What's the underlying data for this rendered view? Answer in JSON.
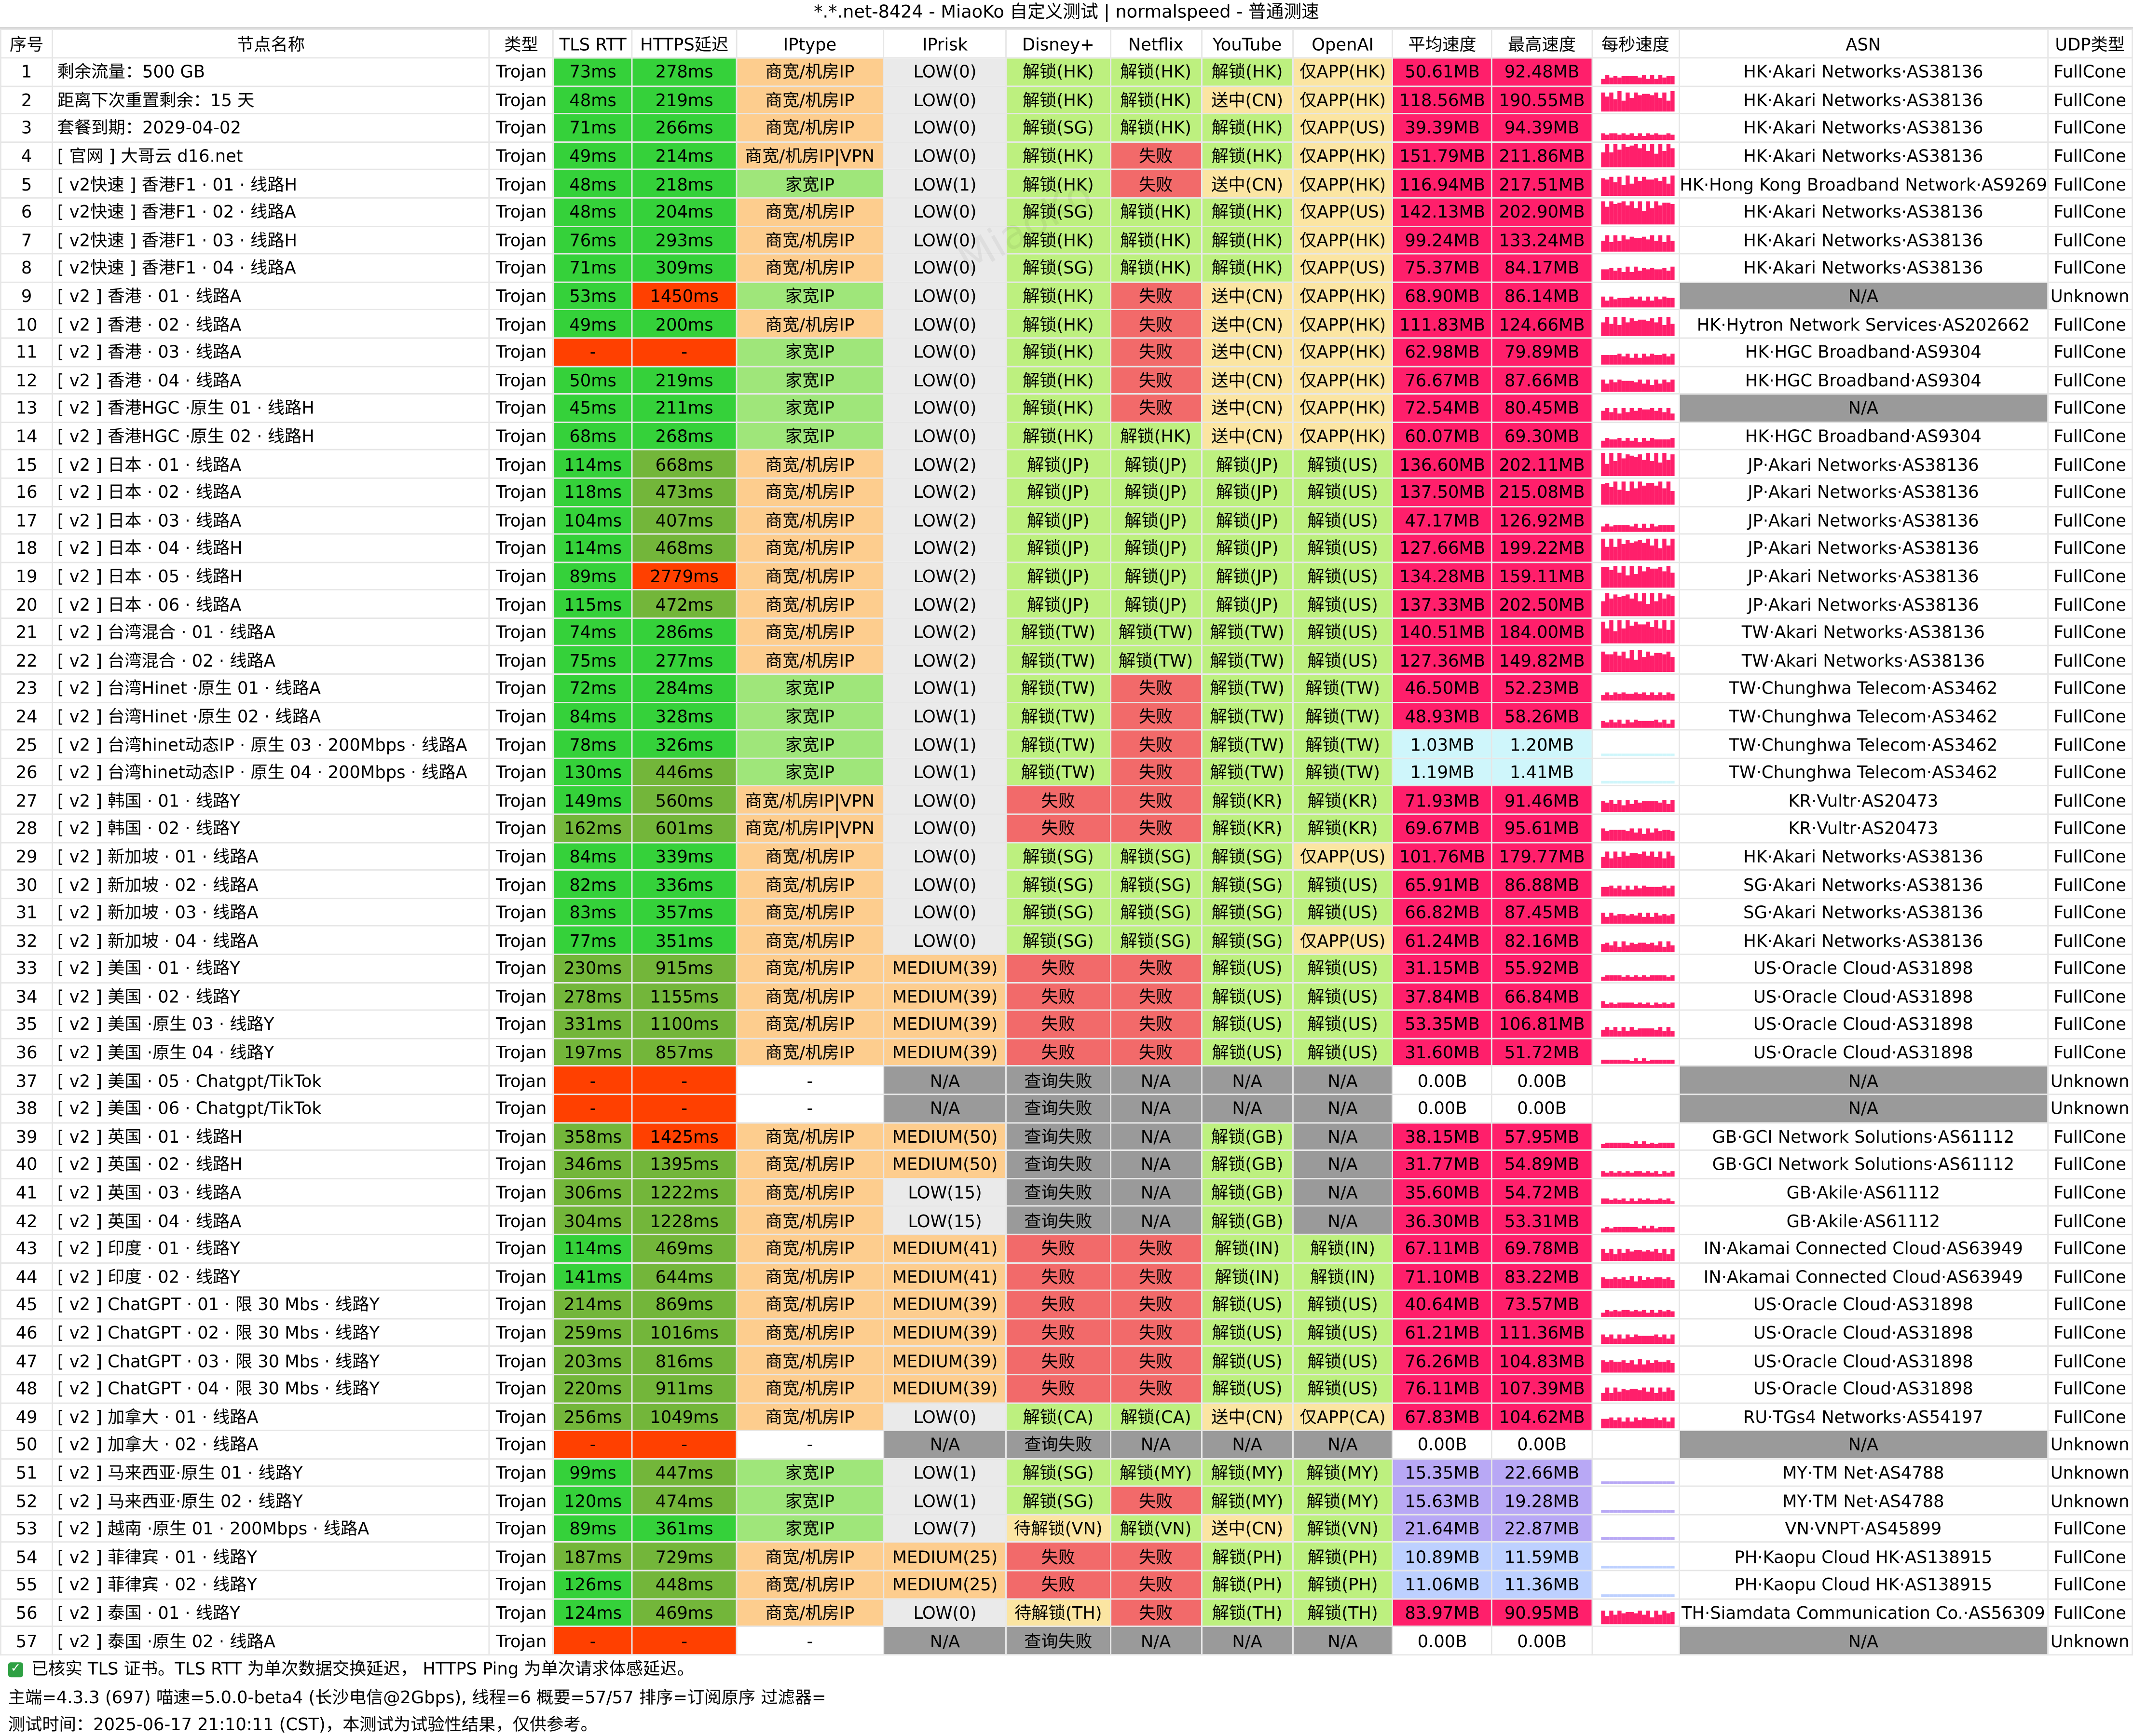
{
  "title": "*.*.net-8424 - MiaoKo 自定义测试 | normalspeed - 普通测速",
  "headers": [
    "序号",
    "节点名称",
    "类型",
    "TLS RTT",
    "HTTPS延迟",
    "IPtype",
    "IPrisk",
    "Disney+",
    "Netflix",
    "YouTube",
    "OpenAI",
    "平均速度",
    "最高速度",
    "每秒速度",
    "ASN",
    "UDP类型"
  ],
  "rows": [
    [
      "1",
      "剩余流量：500 GB",
      "Trojan",
      "73ms",
      "278ms",
      "商宽/机房IP",
      "LOW(0)",
      "解锁(HK)",
      "解锁(HK)",
      "解锁(HK)",
      "仅APP(HK)",
      "50.61MB",
      "92.48MB",
      "HK·Akari Networks·AS38136",
      "FullCone"
    ],
    [
      "2",
      "距离下次重置剩余：15 天",
      "Trojan",
      "48ms",
      "219ms",
      "商宽/机房IP",
      "LOW(0)",
      "解锁(HK)",
      "解锁(HK)",
      "送中(CN)",
      "仅APP(HK)",
      "118.56MB",
      "190.55MB",
      "HK·Akari Networks·AS38136",
      "FullCone"
    ],
    [
      "3",
      "套餐到期：2029-04-02",
      "Trojan",
      "71ms",
      "266ms",
      "商宽/机房IP",
      "LOW(0)",
      "解锁(SG)",
      "解锁(HK)",
      "解锁(HK)",
      "仅APP(US)",
      "39.39MB",
      "94.39MB",
      "HK·Akari Networks·AS38136",
      "FullCone"
    ],
    [
      "4",
      "[ 官网 ] 大哥云 d16.net",
      "Trojan",
      "49ms",
      "214ms",
      "商宽/机房IP|VPN",
      "LOW(0)",
      "解锁(HK)",
      "失败",
      "解锁(HK)",
      "仅APP(HK)",
      "151.79MB",
      "211.86MB",
      "HK·Akari Networks·AS38136",
      "FullCone"
    ],
    [
      "5",
      "[ v2快速 ] 香港F1 · 01 · 线路H",
      "Trojan",
      "48ms",
      "218ms",
      "家宽IP",
      "LOW(1)",
      "解锁(HK)",
      "失败",
      "送中(CN)",
      "仅APP(HK)",
      "116.94MB",
      "217.51MB",
      "HK·Hong Kong Broadband Network·AS9269",
      "FullCone"
    ],
    [
      "6",
      "[ v2快速 ] 香港F1 · 02 · 线路A",
      "Trojan",
      "48ms",
      "204ms",
      "商宽/机房IP",
      "LOW(0)",
      "解锁(SG)",
      "解锁(HK)",
      "解锁(HK)",
      "仅APP(US)",
      "142.13MB",
      "202.90MB",
      "HK·Akari Networks·AS38136",
      "FullCone"
    ],
    [
      "7",
      "[ v2快速 ] 香港F1 · 03 · 线路H",
      "Trojan",
      "76ms",
      "293ms",
      "商宽/机房IP",
      "LOW(0)",
      "解锁(HK)",
      "解锁(HK)",
      "解锁(HK)",
      "仅APP(HK)",
      "99.24MB",
      "133.24MB",
      "HK·Akari Networks·AS38136",
      "FullCone"
    ],
    [
      "8",
      "[ v2快速 ] 香港F1 · 04 · 线路A",
      "Trojan",
      "71ms",
      "309ms",
      "商宽/机房IP",
      "LOW(0)",
      "解锁(SG)",
      "解锁(HK)",
      "解锁(HK)",
      "仅APP(US)",
      "75.37MB",
      "84.17MB",
      "HK·Akari Networks·AS38136",
      "FullCone"
    ],
    [
      "9",
      "[ v2 ] 香港 · 01 · 线路A",
      "Trojan",
      "53ms",
      "1450ms",
      "家宽IP",
      "LOW(0)",
      "解锁(HK)",
      "失败",
      "送中(CN)",
      "仅APP(HK)",
      "68.90MB",
      "86.14MB",
      "N/A",
      "Unknown"
    ],
    [
      "10",
      "[ v2 ] 香港 · 02 · 线路A",
      "Trojan",
      "49ms",
      "200ms",
      "商宽/机房IP",
      "LOW(0)",
      "解锁(HK)",
      "失败",
      "送中(CN)",
      "仅APP(HK)",
      "111.83MB",
      "124.66MB",
      "HK·Hytron Network Services·AS202662",
      "FullCone"
    ],
    [
      "11",
      "[ v2 ] 香港 · 03 · 线路A",
      "Trojan",
      "-",
      "-",
      "家宽IP",
      "LOW(0)",
      "解锁(HK)",
      "失败",
      "送中(CN)",
      "仅APP(HK)",
      "62.98MB",
      "79.89MB",
      "HK·HGC Broadband·AS9304",
      "FullCone"
    ],
    [
      "12",
      "[ v2 ] 香港 · 04 · 线路A",
      "Trojan",
      "50ms",
      "219ms",
      "家宽IP",
      "LOW(0)",
      "解锁(HK)",
      "失败",
      "送中(CN)",
      "仅APP(HK)",
      "76.67MB",
      "87.66MB",
      "HK·HGC Broadband·AS9304",
      "FullCone"
    ],
    [
      "13",
      "[ v2 ] 香港HGC ·原生 01 · 线路H",
      "Trojan",
      "45ms",
      "211ms",
      "家宽IP",
      "LOW(0)",
      "解锁(HK)",
      "失败",
      "送中(CN)",
      "仅APP(HK)",
      "72.54MB",
      "80.45MB",
      "N/A",
      "FullCone"
    ],
    [
      "14",
      "[ v2 ] 香港HGC ·原生 02 · 线路H",
      "Trojan",
      "68ms",
      "268ms",
      "家宽IP",
      "LOW(0)",
      "解锁(HK)",
      "解锁(HK)",
      "送中(CN)",
      "仅APP(HK)",
      "60.07MB",
      "69.30MB",
      "HK·HGC Broadband·AS9304",
      "FullCone"
    ],
    [
      "15",
      "[ v2 ] 日本 · 01 · 线路A",
      "Trojan",
      "114ms",
      "668ms",
      "商宽/机房IP",
      "LOW(2)",
      "解锁(JP)",
      "解锁(JP)",
      "解锁(JP)",
      "解锁(US)",
      "136.60MB",
      "202.11MB",
      "JP·Akari Networks·AS38136",
      "FullCone"
    ],
    [
      "16",
      "[ v2 ] 日本 · 02 · 线路A",
      "Trojan",
      "118ms",
      "473ms",
      "商宽/机房IP",
      "LOW(2)",
      "解锁(JP)",
      "解锁(JP)",
      "解锁(JP)",
      "解锁(US)",
      "137.50MB",
      "215.08MB",
      "JP·Akari Networks·AS38136",
      "FullCone"
    ],
    [
      "17",
      "[ v2 ] 日本 · 03 · 线路A",
      "Trojan",
      "104ms",
      "407ms",
      "商宽/机房IP",
      "LOW(2)",
      "解锁(JP)",
      "解锁(JP)",
      "解锁(JP)",
      "解锁(US)",
      "47.17MB",
      "126.92MB",
      "JP·Akari Networks·AS38136",
      "FullCone"
    ],
    [
      "18",
      "[ v2 ] 日本 · 04 · 线路H",
      "Trojan",
      "114ms",
      "468ms",
      "商宽/机房IP",
      "LOW(2)",
      "解锁(JP)",
      "解锁(JP)",
      "解锁(JP)",
      "解锁(US)",
      "127.66MB",
      "199.22MB",
      "JP·Akari Networks·AS38136",
      "FullCone"
    ],
    [
      "19",
      "[ v2 ] 日本 · 05 · 线路H",
      "Trojan",
      "89ms",
      "2779ms",
      "商宽/机房IP",
      "LOW(2)",
      "解锁(JP)",
      "解锁(JP)",
      "解锁(JP)",
      "解锁(US)",
      "134.28MB",
      "159.11MB",
      "JP·Akari Networks·AS38136",
      "FullCone"
    ],
    [
      "20",
      "[ v2 ] 日本 · 06 · 线路A",
      "Trojan",
      "115ms",
      "472ms",
      "商宽/机房IP",
      "LOW(2)",
      "解锁(JP)",
      "解锁(JP)",
      "解锁(JP)",
      "解锁(US)",
      "137.33MB",
      "202.50MB",
      "JP·Akari Networks·AS38136",
      "FullCone"
    ],
    [
      "21",
      "[ v2 ] 台湾混合 · 01 · 线路A",
      "Trojan",
      "74ms",
      "286ms",
      "商宽/机房IP",
      "LOW(2)",
      "解锁(TW)",
      "解锁(TW)",
      "解锁(TW)",
      "解锁(US)",
      "140.51MB",
      "184.00MB",
      "TW·Akari Networks·AS38136",
      "FullCone"
    ],
    [
      "22",
      "[ v2 ] 台湾混合 · 02 · 线路A",
      "Trojan",
      "75ms",
      "277ms",
      "商宽/机房IP",
      "LOW(2)",
      "解锁(TW)",
      "解锁(TW)",
      "解锁(TW)",
      "解锁(US)",
      "127.36MB",
      "149.82MB",
      "TW·Akari Networks·AS38136",
      "FullCone"
    ],
    [
      "23",
      "[ v2 ] 台湾Hinet ·原生 01 · 线路A",
      "Trojan",
      "72ms",
      "284ms",
      "家宽IP",
      "LOW(1)",
      "解锁(TW)",
      "失败",
      "解锁(TW)",
      "解锁(TW)",
      "46.50MB",
      "52.23MB",
      "TW·Chunghwa Telecom·AS3462",
      "FullCone"
    ],
    [
      "24",
      "[ v2 ] 台湾Hinet ·原生 02 · 线路A",
      "Trojan",
      "84ms",
      "328ms",
      "家宽IP",
      "LOW(1)",
      "解锁(TW)",
      "失败",
      "解锁(TW)",
      "解锁(TW)",
      "48.93MB",
      "58.26MB",
      "TW·Chunghwa Telecom·AS3462",
      "FullCone"
    ],
    [
      "25",
      "[ v2 ] 台湾hinet动态IP · 原生 03 · 200Mbps · 线路A",
      "Trojan",
      "78ms",
      "326ms",
      "家宽IP",
      "LOW(1)",
      "解锁(TW)",
      "失败",
      "解锁(TW)",
      "解锁(TW)",
      "1.03MB",
      "1.20MB",
      "TW·Chunghwa Telecom·AS3462",
      "FullCone"
    ],
    [
      "26",
      "[ v2 ] 台湾hinet动态IP · 原生 04 · 200Mbps · 线路A",
      "Trojan",
      "130ms",
      "446ms",
      "家宽IP",
      "LOW(1)",
      "解锁(TW)",
      "失败",
      "解锁(TW)",
      "解锁(TW)",
      "1.19MB",
      "1.41MB",
      "TW·Chunghwa Telecom·AS3462",
      "FullCone"
    ],
    [
      "27",
      "[ v2 ] 韩国 · 01 · 线路Y",
      "Trojan",
      "149ms",
      "560ms",
      "商宽/机房IP|VPN",
      "LOW(0)",
      "失败",
      "失败",
      "解锁(KR)",
      "解锁(KR)",
      "71.93MB",
      "91.46MB",
      "KR·Vultr·AS20473",
      "FullCone"
    ],
    [
      "28",
      "[ v2 ] 韩国 · 02 · 线路Y",
      "Trojan",
      "162ms",
      "601ms",
      "商宽/机房IP|VPN",
      "LOW(0)",
      "失败",
      "失败",
      "解锁(KR)",
      "解锁(KR)",
      "69.67MB",
      "95.61MB",
      "KR·Vultr·AS20473",
      "FullCone"
    ],
    [
      "29",
      "[ v2 ] 新加坡 · 01 · 线路A",
      "Trojan",
      "84ms",
      "339ms",
      "商宽/机房IP",
      "LOW(0)",
      "解锁(SG)",
      "解锁(SG)",
      "解锁(SG)",
      "仅APP(US)",
      "101.76MB",
      "179.77MB",
      "HK·Akari Networks·AS38136",
      "FullCone"
    ],
    [
      "30",
      "[ v2 ] 新加坡 · 02 · 线路A",
      "Trojan",
      "82ms",
      "336ms",
      "商宽/机房IP",
      "LOW(0)",
      "解锁(SG)",
      "解锁(SG)",
      "解锁(SG)",
      "解锁(US)",
      "65.91MB",
      "86.88MB",
      "SG·Akari Networks·AS38136",
      "FullCone"
    ],
    [
      "31",
      "[ v2 ] 新加坡 · 03 · 线路A",
      "Trojan",
      "83ms",
      "357ms",
      "商宽/机房IP",
      "LOW(0)",
      "解锁(SG)",
      "解锁(SG)",
      "解锁(SG)",
      "解锁(US)",
      "66.82MB",
      "87.45MB",
      "SG·Akari Networks·AS38136",
      "FullCone"
    ],
    [
      "32",
      "[ v2 ] 新加坡 · 04 · 线路A",
      "Trojan",
      "77ms",
      "351ms",
      "商宽/机房IP",
      "LOW(0)",
      "解锁(SG)",
      "解锁(SG)",
      "解锁(SG)",
      "仅APP(US)",
      "61.24MB",
      "82.16MB",
      "HK·Akari Networks·AS38136",
      "FullCone"
    ],
    [
      "33",
      "[ v2 ] 美国 · 01 · 线路Y",
      "Trojan",
      "230ms",
      "915ms",
      "商宽/机房IP",
      "MEDIUM(39)",
      "失败",
      "失败",
      "解锁(US)",
      "解锁(US)",
      "31.15MB",
      "55.92MB",
      "US·Oracle Cloud·AS31898",
      "FullCone"
    ],
    [
      "34",
      "[ v2 ] 美国 · 02 · 线路Y",
      "Trojan",
      "278ms",
      "1155ms",
      "商宽/机房IP",
      "MEDIUM(39)",
      "失败",
      "失败",
      "解锁(US)",
      "解锁(US)",
      "37.84MB",
      "66.84MB",
      "US·Oracle Cloud·AS31898",
      "FullCone"
    ],
    [
      "35",
      "[ v2 ] 美国 ·原生 03 · 线路Y",
      "Trojan",
      "331ms",
      "1100ms",
      "商宽/机房IP",
      "MEDIUM(39)",
      "失败",
      "失败",
      "解锁(US)",
      "解锁(US)",
      "53.35MB",
      "106.81MB",
      "US·Oracle Cloud·AS31898",
      "FullCone"
    ],
    [
      "36",
      "[ v2 ] 美国 ·原生 04 · 线路Y",
      "Trojan",
      "197ms",
      "857ms",
      "商宽/机房IP",
      "MEDIUM(39)",
      "失败",
      "失败",
      "解锁(US)",
      "解锁(US)",
      "31.60MB",
      "51.72MB",
      "US·Oracle Cloud·AS31898",
      "FullCone"
    ],
    [
      "37",
      "[ v2 ] 美国 · 05 · Chatgpt/TikTok",
      "Trojan",
      "-",
      "-",
      "-",
      "N/A",
      "查询失败",
      "N/A",
      "N/A",
      "N/A",
      "0.00B",
      "0.00B",
      "N/A",
      "Unknown"
    ],
    [
      "38",
      "[ v2 ] 美国 · 06 · Chatgpt/TikTok",
      "Trojan",
      "-",
      "-",
      "-",
      "N/A",
      "查询失败",
      "N/A",
      "N/A",
      "N/A",
      "0.00B",
      "0.00B",
      "N/A",
      "Unknown"
    ],
    [
      "39",
      "[ v2 ] 英国 · 01 · 线路H",
      "Trojan",
      "358ms",
      "1425ms",
      "商宽/机房IP",
      "MEDIUM(50)",
      "查询失败",
      "N/A",
      "解锁(GB)",
      "N/A",
      "38.15MB",
      "57.95MB",
      "GB·GCI Network Solutions·AS61112",
      "FullCone"
    ],
    [
      "40",
      "[ v2 ] 英国 · 02 · 线路H",
      "Trojan",
      "346ms",
      "1395ms",
      "商宽/机房IP",
      "MEDIUM(50)",
      "查询失败",
      "N/A",
      "解锁(GB)",
      "N/A",
      "31.77MB",
      "54.89MB",
      "GB·GCI Network Solutions·AS61112",
      "FullCone"
    ],
    [
      "41",
      "[ v2 ] 英国 · 03 · 线路A",
      "Trojan",
      "306ms",
      "1222ms",
      "商宽/机房IP",
      "LOW(15)",
      "查询失败",
      "N/A",
      "解锁(GB)",
      "N/A",
      "35.60MB",
      "54.72MB",
      "GB·Akile·AS61112",
      "FullCone"
    ],
    [
      "42",
      "[ v2 ] 英国 · 04 · 线路A",
      "Trojan",
      "304ms",
      "1228ms",
      "商宽/机房IP",
      "LOW(15)",
      "查询失败",
      "N/A",
      "解锁(GB)",
      "N/A",
      "36.30MB",
      "53.31MB",
      "GB·Akile·AS61112",
      "FullCone"
    ],
    [
      "43",
      "[ v2 ] 印度 · 01 · 线路Y",
      "Trojan",
      "114ms",
      "469ms",
      "商宽/机房IP",
      "MEDIUM(41)",
      "失败",
      "失败",
      "解锁(IN)",
      "解锁(IN)",
      "67.11MB",
      "69.78MB",
      "IN·Akamai Connected Cloud·AS63949",
      "FullCone"
    ],
    [
      "44",
      "[ v2 ] 印度 · 02 · 线路Y",
      "Trojan",
      "141ms",
      "644ms",
      "商宽/机房IP",
      "MEDIUM(41)",
      "失败",
      "失败",
      "解锁(IN)",
      "解锁(IN)",
      "71.10MB",
      "83.22MB",
      "IN·Akamai Connected Cloud·AS63949",
      "FullCone"
    ],
    [
      "45",
      "[ v2 ] ChatGPT · 01 · 限 30 Mbs · 线路Y",
      "Trojan",
      "214ms",
      "869ms",
      "商宽/机房IP",
      "MEDIUM(39)",
      "失败",
      "失败",
      "解锁(US)",
      "解锁(US)",
      "40.64MB",
      "73.57MB",
      "US·Oracle Cloud·AS31898",
      "FullCone"
    ],
    [
      "46",
      "[ v2 ] ChatGPT · 02 · 限 30 Mbs · 线路Y",
      "Trojan",
      "259ms",
      "1016ms",
      "商宽/机房IP",
      "MEDIUM(39)",
      "失败",
      "失败",
      "解锁(US)",
      "解锁(US)",
      "61.21MB",
      "111.36MB",
      "US·Oracle Cloud·AS31898",
      "FullCone"
    ],
    [
      "47",
      "[ v2 ] ChatGPT · 03 · 限 30 Mbs · 线路Y",
      "Trojan",
      "203ms",
      "816ms",
      "商宽/机房IP",
      "MEDIUM(39)",
      "失败",
      "失败",
      "解锁(US)",
      "解锁(US)",
      "76.26MB",
      "104.83MB",
      "US·Oracle Cloud·AS31898",
      "FullCone"
    ],
    [
      "48",
      "[ v2 ] ChatGPT · 04 · 限 30 Mbs · 线路Y",
      "Trojan",
      "220ms",
      "911ms",
      "商宽/机房IP",
      "MEDIUM(39)",
      "失败",
      "失败",
      "解锁(US)",
      "解锁(US)",
      "76.11MB",
      "107.39MB",
      "US·Oracle Cloud·AS31898",
      "FullCone"
    ],
    [
      "49",
      "[ v2 ] 加拿大 · 01 · 线路A",
      "Trojan",
      "256ms",
      "1049ms",
      "商宽/机房IP",
      "LOW(0)",
      "解锁(CA)",
      "解锁(CA)",
      "送中(CN)",
      "仅APP(CA)",
      "67.83MB",
      "104.62MB",
      "RU·TGs4 Networks·AS54197",
      "FullCone"
    ],
    [
      "50",
      "[ v2 ] 加拿大 · 02 · 线路A",
      "Trojan",
      "-",
      "-",
      "-",
      "N/A",
      "查询失败",
      "N/A",
      "N/A",
      "N/A",
      "0.00B",
      "0.00B",
      "N/A",
      "Unknown"
    ],
    [
      "51",
      "[ v2 ] 马来西亚·原生 01 · 线路Y",
      "Trojan",
      "99ms",
      "447ms",
      "家宽IP",
      "LOW(1)",
      "解锁(SG)",
      "解锁(MY)",
      "解锁(MY)",
      "解锁(MY)",
      "15.35MB",
      "22.66MB",
      "MY·TM Net·AS4788",
      "Unknown"
    ],
    [
      "52",
      "[ v2 ] 马来西亚·原生 02 · 线路Y",
      "Trojan",
      "120ms",
      "474ms",
      "家宽IP",
      "LOW(1)",
      "解锁(SG)",
      "失败",
      "解锁(MY)",
      "解锁(MY)",
      "15.63MB",
      "19.28MB",
      "MY·TM Net·AS4788",
      "Unknown"
    ],
    [
      "53",
      "[ v2 ] 越南 ·原生 01 · 200Mbps · 线路A",
      "Trojan",
      "89ms",
      "361ms",
      "家宽IP",
      "LOW(7)",
      "待解锁(VN)",
      "解锁(VN)",
      "送中(CN)",
      "解锁(VN)",
      "21.64MB",
      "22.87MB",
      "VN·VNPT·AS45899",
      "FullCone"
    ],
    [
      "54",
      "[ v2 ] 菲律宾 · 01 · 线路Y",
      "Trojan",
      "187ms",
      "729ms",
      "商宽/机房IP",
      "MEDIUM(25)",
      "失败",
      "失败",
      "解锁(PH)",
      "解锁(PH)",
      "10.89MB",
      "11.59MB",
      "PH·Kaopu Cloud HK·AS138915",
      "FullCone"
    ],
    [
      "55",
      "[ v2 ] 菲律宾 · 02 · 线路Y",
      "Trojan",
      "126ms",
      "448ms",
      "商宽/机房IP",
      "MEDIUM(25)",
      "失败",
      "失败",
      "解锁(PH)",
      "解锁(PH)",
      "11.06MB",
      "11.36MB",
      "PH·Kaopu Cloud HK·AS138915",
      "FullCone"
    ],
    [
      "56",
      "[ v2 ] 泰国 · 01 · 线路Y",
      "Trojan",
      "124ms",
      "469ms",
      "商宽/机房IP",
      "LOW(0)",
      "待解锁(TH)",
      "失败",
      "解锁(TH)",
      "解锁(TH)",
      "83.97MB",
      "90.95MB",
      "TH·Siamdata Communication Co.·AS56309",
      "FullCone"
    ],
    [
      "57",
      "[ v2 ] 泰国 ·原生 02 · 线路A",
      "Trojan",
      "-",
      "-",
      "-",
      "N/A",
      "查询失败",
      "N/A",
      "N/A",
      "N/A",
      "0.00B",
      "0.00B",
      "N/A",
      "Unknown"
    ]
  ],
  "footer": {
    "line1": "已核实 TLS 证书。TLS RTT 为单次数据交换延迟， HTTPS Ping 为单次请求体感延迟。",
    "line2": "主端=4.3.3 (697) 喵速=5.0.0-beta4 (长沙电信@2Gbps), 线程=6 概要=57/57 排序=订阅原序 过滤器=",
    "line3": "测试时间：2025-06-17 21:10:11 (CST)，本测试为试验性结果，仅供参考。"
  },
  "watermark": "MiaoKo"
}
